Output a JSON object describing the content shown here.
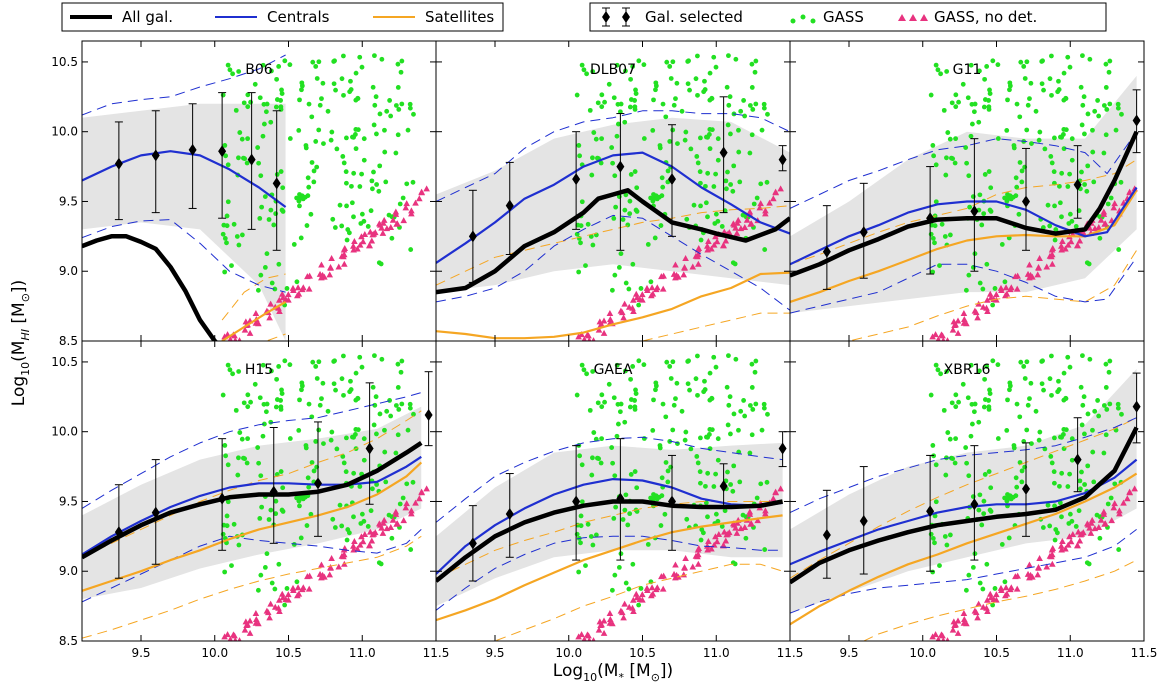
{
  "figure": {
    "xlabel": "Log$_{10}$(M$_*$ [M$_\\odot$])",
    "xlabel_parts": [
      "Log",
      "10",
      "(M",
      "*",
      " [M",
      "⊙",
      "])"
    ],
    "ylabel_parts": [
      "Log",
      "10",
      "(M",
      "HI",
      " [M",
      "⊙",
      "])"
    ],
    "legend_left": [
      {
        "label": "All gal.",
        "color": "#000000",
        "style": "thick"
      },
      {
        "label": "Centrals",
        "color": "#1f2fd0",
        "style": "line"
      },
      {
        "label": "Satellites",
        "color": "#f5a623",
        "style": "line"
      }
    ],
    "legend_right": [
      {
        "label": "Gal. selected",
        "color": "#000000",
        "style": "errorbar"
      },
      {
        "label": "GASS",
        "color": "#22e022",
        "style": "dots"
      },
      {
        "label": "GASS, no det.",
        "color": "#e8337f",
        "style": "triangles"
      }
    ],
    "colors": {
      "all": "#000000",
      "centrals": "#1f2fd0",
      "satellites": "#f5a623",
      "gass": "#22e022",
      "nodet": "#e8337f",
      "band": "#e4e4e4"
    }
  },
  "chart_data": [
    {
      "type": "line",
      "title": "B06",
      "xlim": [
        9.1,
        11.5
      ],
      "ylim": [
        8.5,
        10.65
      ],
      "xticks": [
        "9.5",
        "10.0",
        "10.5",
        "11.0",
        "11.5"
      ],
      "yticks": [
        "8.5",
        "9.0",
        "9.5",
        "10.0",
        "10.5"
      ],
      "all_x": [
        9.1,
        9.2,
        9.3,
        9.4,
        9.5,
        9.6,
        9.7,
        9.8,
        9.9,
        10.0,
        10.1,
        10.2,
        10.3
      ],
      "all_y": [
        9.18,
        9.22,
        9.25,
        9.25,
        9.21,
        9.16,
        9.03,
        8.86,
        8.65,
        8.5,
        8.4,
        8.3,
        8.2
      ],
      "cen_x": [
        9.1,
        9.3,
        9.5,
        9.7,
        9.9,
        10.1,
        10.3,
        10.48
      ],
      "cen_y": [
        9.65,
        9.75,
        9.83,
        9.86,
        9.83,
        9.73,
        9.6,
        9.46
      ],
      "cen_hi": [
        10.12,
        10.2,
        10.23,
        10.25,
        10.32,
        10.38,
        10.45,
        10.55
      ],
      "cen_lo": [
        9.24,
        9.32,
        9.36,
        9.37,
        9.2,
        9.0,
        8.9,
        8.85
      ],
      "sat_x": [
        10.05,
        10.2,
        10.35,
        10.48
      ],
      "sat_y": [
        8.5,
        8.6,
        8.7,
        8.78
      ],
      "sat_hi": [
        8.65,
        8.85,
        8.95,
        8.98
      ],
      "sat_lo": [
        8.4,
        8.45,
        8.5,
        8.55
      ],
      "band_x": [
        9.1,
        9.5,
        9.9,
        10.3,
        10.48
      ],
      "band_hi": [
        10.1,
        10.15,
        10.2,
        10.2,
        10.2
      ],
      "band_lo": [
        9.3,
        9.35,
        9.3,
        8.9,
        8.5
      ],
      "err_x": [
        9.35,
        9.6,
        9.85,
        10.05,
        10.25,
        10.42
      ],
      "err_y": [
        9.77,
        9.83,
        9.87,
        9.86,
        9.8,
        9.63
      ],
      "err_lo": [
        9.37,
        9.42,
        9.45,
        9.38,
        9.3,
        9.15
      ],
      "err_hi": [
        10.07,
        10.15,
        10.2,
        10.28,
        10.28,
        10.15
      ]
    },
    {
      "type": "line",
      "title": "DLB07",
      "xlim": [
        9.1,
        11.5
      ],
      "ylim": [
        8.5,
        10.65
      ],
      "xticks": [
        "9.5",
        "10.0",
        "10.5",
        "11.0",
        "11.5"
      ],
      "yticks": [],
      "all_x": [
        9.1,
        9.3,
        9.5,
        9.7,
        9.9,
        10.1,
        10.2,
        10.3,
        10.4,
        10.5,
        10.7,
        10.9,
        11.0,
        11.2,
        11.4,
        11.5
      ],
      "all_y": [
        8.85,
        8.88,
        9.0,
        9.18,
        9.28,
        9.42,
        9.52,
        9.55,
        9.58,
        9.5,
        9.35,
        9.3,
        9.27,
        9.22,
        9.3,
        9.38
      ],
      "cen_x": [
        9.1,
        9.3,
        9.5,
        9.7,
        9.9,
        10.1,
        10.3,
        10.5,
        10.7,
        10.9,
        11.1,
        11.3,
        11.5
      ],
      "cen_y": [
        9.06,
        9.2,
        9.35,
        9.52,
        9.62,
        9.75,
        9.83,
        9.85,
        9.75,
        9.6,
        9.48,
        9.35,
        9.27
      ],
      "cen_hi": [
        9.5,
        9.6,
        9.7,
        9.88,
        10.0,
        10.07,
        10.1,
        10.15,
        10.15,
        10.13,
        10.13,
        10.1,
        10.0
      ],
      "cen_lo": [
        8.78,
        8.82,
        8.88,
        9.0,
        9.18,
        9.3,
        9.4,
        9.38,
        9.25,
        9.12,
        9.0,
        8.88,
        8.72
      ],
      "sat_x": [
        9.1,
        9.3,
        9.5,
        9.7,
        9.9,
        10.1,
        10.3,
        10.5,
        10.7,
        10.9,
        11.1,
        11.3,
        11.5
      ],
      "sat_y": [
        8.57,
        8.55,
        8.52,
        8.52,
        8.53,
        8.56,
        8.62,
        8.67,
        8.73,
        8.82,
        8.88,
        8.98,
        8.99
      ],
      "sat_hi": [
        8.9,
        9.0,
        9.1,
        9.15,
        9.2,
        9.25,
        9.3,
        9.35,
        9.38,
        9.42,
        9.44,
        9.45,
        9.47
      ],
      "sat_lo": [
        8.4,
        8.4,
        8.4,
        8.4,
        8.4,
        8.42,
        8.45,
        8.5,
        8.55,
        8.6,
        8.65,
        8.7,
        8.7
      ],
      "band_x": [
        9.1,
        9.5,
        9.9,
        10.3,
        10.7,
        11.1,
        11.5
      ],
      "band_hi": [
        9.55,
        9.72,
        9.95,
        10.05,
        10.1,
        10.07,
        9.85
      ],
      "band_lo": [
        8.85,
        8.9,
        9.0,
        9.05,
        9.0,
        8.95,
        8.9
      ],
      "err_x": [
        9.35,
        9.6,
        10.05,
        10.35,
        10.7,
        11.05,
        11.45
      ],
      "err_y": [
        9.25,
        9.47,
        9.66,
        9.75,
        9.66,
        9.85,
        9.8
      ],
      "err_lo": [
        8.92,
        9.12,
        9.3,
        9.15,
        9.25,
        9.42,
        9.72
      ],
      "err_hi": [
        9.58,
        9.78,
        10.0,
        10.13,
        10.05,
        10.25,
        9.9
      ]
    },
    {
      "type": "line",
      "title": "G11",
      "xlim": [
        9.1,
        11.5
      ],
      "ylim": [
        8.5,
        10.65
      ],
      "xticks": [
        "9.5",
        "10.0",
        "10.5",
        "11.0",
        "11.5"
      ],
      "yticks": [],
      "all_x": [
        9.1,
        9.3,
        9.5,
        9.7,
        9.9,
        10.1,
        10.3,
        10.5,
        10.7,
        10.9,
        11.1,
        11.2,
        11.3,
        11.45
      ],
      "all_y": [
        8.97,
        9.05,
        9.15,
        9.23,
        9.32,
        9.37,
        9.38,
        9.38,
        9.31,
        9.27,
        9.3,
        9.45,
        9.65,
        10.0
      ],
      "cen_x": [
        9.1,
        9.3,
        9.5,
        9.7,
        9.9,
        10.1,
        10.3,
        10.5,
        10.7,
        10.9,
        11.1,
        11.25,
        11.45
      ],
      "cen_y": [
        9.05,
        9.15,
        9.25,
        9.33,
        9.42,
        9.48,
        9.5,
        9.5,
        9.44,
        9.33,
        9.25,
        9.28,
        9.6
      ],
      "cen_hi": [
        9.45,
        9.55,
        9.65,
        9.72,
        9.8,
        9.87,
        9.9,
        9.95,
        9.93,
        9.9,
        9.85,
        9.7,
        10.0
      ],
      "cen_lo": [
        8.7,
        8.75,
        8.8,
        8.85,
        8.95,
        9.05,
        9.05,
        9.0,
        8.92,
        8.82,
        8.78,
        8.8,
        9.1
      ],
      "sat_x": [
        9.1,
        9.3,
        9.5,
        9.7,
        9.9,
        10.1,
        10.3,
        10.5,
        10.7,
        10.9,
        11.1,
        11.3,
        11.45
      ],
      "sat_y": [
        8.78,
        8.85,
        8.93,
        9.0,
        9.08,
        9.16,
        9.22,
        9.25,
        9.26,
        9.25,
        9.25,
        9.33,
        9.58
      ],
      "sat_hi": [
        9.05,
        9.12,
        9.2,
        9.28,
        9.35,
        9.4,
        9.45,
        9.55,
        9.6,
        9.62,
        9.65,
        9.7,
        9.8
      ],
      "sat_lo": [
        8.4,
        8.45,
        8.5,
        8.55,
        8.6,
        8.68,
        8.75,
        8.8,
        8.82,
        8.8,
        8.78,
        8.9,
        9.15
      ],
      "band_x": [
        9.1,
        9.5,
        9.9,
        10.3,
        10.7,
        11.1,
        11.45
      ],
      "band_hi": [
        9.25,
        9.5,
        9.8,
        10.0,
        9.95,
        9.95,
        10.4
      ],
      "band_lo": [
        8.7,
        8.75,
        8.8,
        8.85,
        8.85,
        8.95,
        9.3
      ],
      "err_x": [
        9.35,
        9.6,
        10.05,
        10.35,
        10.7,
        11.05,
        11.45
      ],
      "err_y": [
        9.14,
        9.28,
        9.38,
        9.43,
        9.5,
        9.62,
        10.08
      ],
      "err_lo": [
        8.87,
        8.95,
        8.98,
        9.0,
        9.15,
        9.38,
        9.85
      ],
      "err_hi": [
        9.47,
        9.63,
        9.75,
        9.95,
        9.88,
        9.9,
        10.3
      ]
    },
    {
      "type": "line",
      "title": "H15",
      "xlim": [
        9.1,
        11.5
      ],
      "ylim": [
        8.5,
        10.65
      ],
      "xticks": [
        "9.5",
        "10.0",
        "10.5",
        "11.0",
        "11.5"
      ],
      "yticks": [
        "8.5",
        "9.0",
        "9.5",
        "10.0",
        "10.5"
      ],
      "all_x": [
        9.1,
        9.3,
        9.5,
        9.7,
        9.9,
        10.1,
        10.3,
        10.5,
        10.7,
        10.9,
        11.1,
        11.3,
        11.4
      ],
      "all_y": [
        9.1,
        9.22,
        9.33,
        9.42,
        9.48,
        9.53,
        9.55,
        9.55,
        9.57,
        9.62,
        9.72,
        9.85,
        9.92
      ],
      "cen_x": [
        9.1,
        9.3,
        9.5,
        9.7,
        9.9,
        10.1,
        10.3,
        10.5,
        10.7,
        10.9,
        11.1,
        11.3,
        11.4
      ],
      "cen_y": [
        9.12,
        9.25,
        9.36,
        9.46,
        9.54,
        9.6,
        9.63,
        9.63,
        9.62,
        9.62,
        9.64,
        9.75,
        9.82
      ],
      "cen_hi": [
        9.45,
        9.58,
        9.7,
        9.82,
        9.92,
        10.0,
        10.05,
        10.08,
        10.1,
        10.15,
        10.2,
        10.25,
        10.28
      ],
      "cen_lo": [
        8.78,
        8.88,
        8.98,
        9.08,
        9.18,
        9.25,
        9.22,
        9.2,
        9.18,
        9.15,
        9.13,
        9.2,
        9.3
      ],
      "sat_x": [
        9.1,
        9.3,
        9.5,
        9.7,
        9.9,
        10.1,
        10.3,
        10.5,
        10.7,
        10.9,
        11.1,
        11.3,
        11.4
      ],
      "sat_y": [
        8.86,
        8.93,
        9.0,
        9.08,
        9.15,
        9.23,
        9.3,
        9.35,
        9.4,
        9.46,
        9.55,
        9.68,
        9.78
      ],
      "sat_hi": [
        9.1,
        9.2,
        9.3,
        9.4,
        9.5,
        9.58,
        9.65,
        9.7,
        9.78,
        9.85,
        9.95,
        10.08,
        10.15
      ],
      "sat_lo": [
        8.52,
        8.58,
        8.65,
        8.72,
        8.8,
        8.87,
        8.93,
        8.98,
        9.02,
        9.06,
        9.1,
        9.18,
        9.25
      ],
      "band_x": [
        9.1,
        9.5,
        9.9,
        10.3,
        10.7,
        11.1,
        11.4
      ],
      "band_hi": [
        9.4,
        9.62,
        9.8,
        9.9,
        9.95,
        10.02,
        10.18
      ],
      "band_lo": [
        8.8,
        8.88,
        9.02,
        9.12,
        9.2,
        9.3,
        9.45
      ],
      "err_x": [
        9.35,
        9.6,
        10.05,
        10.4,
        10.7,
        11.05,
        11.45
      ],
      "err_y": [
        9.28,
        9.42,
        9.52,
        9.57,
        9.63,
        9.88,
        10.12
      ],
      "err_lo": [
        8.95,
        9.05,
        9.15,
        9.2,
        9.25,
        9.48,
        9.9
      ],
      "err_hi": [
        9.62,
        9.8,
        9.95,
        10.03,
        10.07,
        10.35,
        10.43
      ]
    },
    {
      "type": "line",
      "title": "GAEA",
      "xlim": [
        9.1,
        11.5
      ],
      "ylim": [
        8.5,
        10.65
      ],
      "xticks": [
        "9.5",
        "10.0",
        "10.5",
        "11.0",
        "11.5"
      ],
      "yticks": [],
      "all_x": [
        9.1,
        9.3,
        9.5,
        9.7,
        9.9,
        10.1,
        10.3,
        10.5,
        10.7,
        10.9,
        11.1,
        11.3,
        11.45
      ],
      "all_y": [
        8.93,
        9.1,
        9.25,
        9.35,
        9.42,
        9.47,
        9.5,
        9.5,
        9.47,
        9.46,
        9.46,
        9.47,
        9.5
      ],
      "cen_x": [
        9.1,
        9.3,
        9.5,
        9.7,
        9.9,
        10.1,
        10.3,
        10.5,
        10.7,
        10.9,
        11.1,
        11.3,
        11.45
      ],
      "cen_y": [
        8.98,
        9.18,
        9.33,
        9.45,
        9.55,
        9.62,
        9.66,
        9.65,
        9.6,
        9.52,
        9.48,
        9.47,
        9.49
      ],
      "cen_hi": [
        9.35,
        9.52,
        9.68,
        9.78,
        9.86,
        9.92,
        9.95,
        9.96,
        9.93,
        9.88,
        9.85,
        9.82,
        9.8
      ],
      "cen_lo": [
        8.72,
        8.88,
        9.02,
        9.12,
        9.2,
        9.24,
        9.25,
        9.25,
        9.22,
        9.18,
        9.17,
        9.15,
        9.15
      ],
      "sat_x": [
        9.1,
        9.3,
        9.5,
        9.7,
        9.9,
        10.1,
        10.3,
        10.5,
        10.7,
        10.9,
        11.1,
        11.3,
        11.45
      ],
      "sat_y": [
        8.65,
        8.72,
        8.8,
        8.9,
        8.99,
        9.08,
        9.15,
        9.22,
        9.28,
        9.32,
        9.35,
        9.38,
        9.4
      ],
      "sat_hi": [
        8.95,
        9.05,
        9.15,
        9.22,
        9.28,
        9.35,
        9.4,
        9.45,
        9.48,
        9.5,
        9.5,
        9.5,
        9.5
      ],
      "sat_lo": [
        8.35,
        8.42,
        8.5,
        8.58,
        8.66,
        8.75,
        8.82,
        8.9,
        8.95,
        9.0,
        9.05,
        9.05,
        9.0
      ],
      "band_x": [
        9.1,
        9.5,
        9.9,
        10.3,
        10.7,
        11.1,
        11.45
      ],
      "band_hi": [
        9.25,
        9.6,
        9.85,
        9.9,
        9.87,
        9.9,
        9.92
      ],
      "band_lo": [
        8.75,
        8.95,
        9.1,
        9.15,
        9.15,
        9.1,
        9.1
      ],
      "err_x": [
        9.35,
        9.6,
        10.05,
        10.35,
        10.7,
        11.05,
        11.45
      ],
      "err_y": [
        9.2,
        9.41,
        9.5,
        9.52,
        9.5,
        9.61,
        9.88
      ],
      "err_lo": [
        8.93,
        9.1,
        9.08,
        9.08,
        9.15,
        9.45,
        9.75
      ],
      "err_hi": [
        9.47,
        9.7,
        9.9,
        9.95,
        9.83,
        9.77,
        10.0
      ]
    },
    {
      "type": "line",
      "title": "XBR16",
      "xlim": [
        9.1,
        11.5
      ],
      "ylim": [
        8.5,
        10.65
      ],
      "xticks": [
        "9.5",
        "10.0",
        "10.5",
        "11.0",
        "11.5"
      ],
      "yticks": [],
      "all_x": [
        9.1,
        9.3,
        9.5,
        9.7,
        9.9,
        10.1,
        10.3,
        10.5,
        10.7,
        10.9,
        11.1,
        11.3,
        11.45
      ],
      "all_y": [
        8.92,
        9.06,
        9.15,
        9.22,
        9.28,
        9.33,
        9.36,
        9.39,
        9.41,
        9.44,
        9.53,
        9.72,
        10.03
      ],
      "cen_x": [
        9.1,
        9.3,
        9.5,
        9.7,
        9.9,
        10.1,
        10.3,
        10.5,
        10.7,
        10.9,
        11.1,
        11.3,
        11.45
      ],
      "cen_y": [
        9.05,
        9.14,
        9.22,
        9.3,
        9.36,
        9.42,
        9.46,
        9.48,
        9.48,
        9.5,
        9.56,
        9.67,
        9.8
      ],
      "cen_hi": [
        9.42,
        9.52,
        9.6,
        9.68,
        9.74,
        9.8,
        9.83,
        9.85,
        9.87,
        9.9,
        9.96,
        10.03,
        10.1
      ],
      "cen_lo": [
        8.7,
        8.78,
        8.84,
        8.88,
        8.9,
        8.92,
        8.94,
        8.98,
        9.02,
        9.06,
        9.1,
        9.18,
        9.3
      ],
      "sat_x": [
        9.1,
        9.3,
        9.5,
        9.7,
        9.9,
        10.1,
        10.3,
        10.5,
        10.7,
        10.9,
        11.1,
        11.3,
        11.45
      ],
      "sat_y": [
        8.62,
        8.75,
        8.86,
        8.96,
        9.05,
        9.12,
        9.2,
        9.27,
        9.34,
        9.41,
        9.5,
        9.6,
        9.7
      ],
      "sat_hi": [
        8.95,
        9.08,
        9.2,
        9.32,
        9.43,
        9.53,
        9.62,
        9.7,
        9.78,
        9.86,
        9.94,
        10.02,
        10.1
      ],
      "sat_lo": [
        8.28,
        8.38,
        8.45,
        8.55,
        8.62,
        8.68,
        8.73,
        8.78,
        8.82,
        8.87,
        8.93,
        9.0,
        9.08
      ],
      "band_x": [
        9.1,
        9.5,
        9.9,
        10.3,
        10.7,
        11.1,
        11.45
      ],
      "band_hi": [
        9.3,
        9.55,
        9.75,
        9.85,
        9.9,
        10.05,
        10.45
      ],
      "band_lo": [
        8.7,
        8.85,
        9.0,
        9.1,
        9.2,
        9.25,
        9.45
      ],
      "err_x": [
        9.35,
        9.6,
        10.05,
        10.35,
        10.7,
        11.05,
        11.45
      ],
      "err_y": [
        9.26,
        9.36,
        9.43,
        9.48,
        9.59,
        9.8,
        10.18
      ],
      "err_lo": [
        8.95,
        8.98,
        9.0,
        9.08,
        9.25,
        9.57,
        9.92
      ],
      "err_hi": [
        9.58,
        9.75,
        9.83,
        9.9,
        9.92,
        10.1,
        10.42
      ]
    }
  ]
}
